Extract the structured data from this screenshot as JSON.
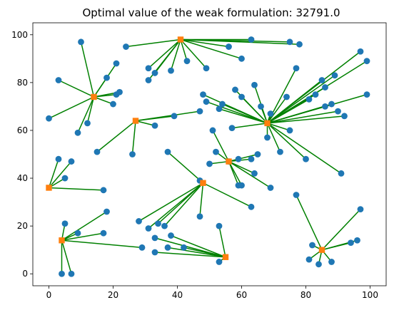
{
  "chart_data": {
    "type": "scatter",
    "title": "Optimal value of the weak formulation: 32791.0",
    "xlabel": "",
    "ylabel": "",
    "xlim": [
      -5,
      105
    ],
    "ylim": [
      -5,
      105
    ],
    "x_ticks": [
      0,
      20,
      40,
      60,
      80,
      100
    ],
    "y_ticks": [
      0,
      20,
      40,
      60,
      80,
      100
    ],
    "grid": false,
    "colors": {
      "customer": "#1f77b4",
      "facility": "#ff7f0e",
      "assignment": "#008000"
    },
    "facilities": [
      {
        "x": 41,
        "y": 98
      },
      {
        "x": 14,
        "y": 74
      },
      {
        "x": 27,
        "y": 64
      },
      {
        "x": 68,
        "y": 63
      },
      {
        "x": 56,
        "y": 47
      },
      {
        "x": 0,
        "y": 36
      },
      {
        "x": 48,
        "y": 38
      },
      {
        "x": 4,
        "y": 14
      },
      {
        "x": 55,
        "y": 7
      },
      {
        "x": 85,
        "y": 10
      }
    ],
    "customers": [
      {
        "x": 10,
        "y": 97,
        "f": 1
      },
      {
        "x": 3,
        "y": 81,
        "f": 1
      },
      {
        "x": 18,
        "y": 82,
        "f": 1
      },
      {
        "x": 21,
        "y": 88,
        "f": 1
      },
      {
        "x": 21,
        "y": 75,
        "f": 1
      },
      {
        "x": 22,
        "y": 76,
        "f": 1
      },
      {
        "x": 20,
        "y": 71,
        "f": 1
      },
      {
        "x": 12,
        "y": 63,
        "f": 1
      },
      {
        "x": 9,
        "y": 59,
        "f": 1
      },
      {
        "x": 0,
        "y": 65,
        "f": 1
      },
      {
        "x": 24,
        "y": 95,
        "f": 0
      },
      {
        "x": 31,
        "y": 86,
        "f": 0
      },
      {
        "x": 33,
        "y": 84,
        "f": 0
      },
      {
        "x": 31,
        "y": 81,
        "f": 0
      },
      {
        "x": 38,
        "y": 85,
        "f": 0
      },
      {
        "x": 43,
        "y": 89,
        "f": 0
      },
      {
        "x": 49,
        "y": 86,
        "f": 0
      },
      {
        "x": 56,
        "y": 95,
        "f": 0
      },
      {
        "x": 60,
        "y": 90,
        "f": 0
      },
      {
        "x": 63,
        "y": 98,
        "f": 0
      },
      {
        "x": 75,
        "y": 97,
        "f": 0
      },
      {
        "x": 78,
        "y": 96,
        "f": 0
      },
      {
        "x": 15,
        "y": 51,
        "f": 2
      },
      {
        "x": 26,
        "y": 50,
        "f": 2
      },
      {
        "x": 33,
        "y": 62,
        "f": 2
      },
      {
        "x": 39,
        "y": 66,
        "f": 2
      },
      {
        "x": 47,
        "y": 68,
        "f": 2
      },
      {
        "x": 97,
        "y": 93,
        "f": 3
      },
      {
        "x": 99,
        "y": 89,
        "f": 3
      },
      {
        "x": 89,
        "y": 83,
        "f": 3
      },
      {
        "x": 85,
        "y": 81,
        "f": 3
      },
      {
        "x": 86,
        "y": 78,
        "f": 3
      },
      {
        "x": 83,
        "y": 75,
        "f": 3
      },
      {
        "x": 81,
        "y": 73,
        "f": 3
      },
      {
        "x": 99,
        "y": 75,
        "f": 3
      },
      {
        "x": 88,
        "y": 71,
        "f": 3
      },
      {
        "x": 86,
        "y": 70,
        "f": 3
      },
      {
        "x": 90,
        "y": 68,
        "f": 3
      },
      {
        "x": 92,
        "y": 66,
        "f": 3
      },
      {
        "x": 77,
        "y": 86,
        "f": 3
      },
      {
        "x": 74,
        "y": 74,
        "f": 3
      },
      {
        "x": 64,
        "y": 79,
        "f": 3
      },
      {
        "x": 58,
        "y": 77,
        "f": 3
      },
      {
        "x": 60,
        "y": 74,
        "f": 3
      },
      {
        "x": 48,
        "y": 75,
        "f": 3
      },
      {
        "x": 49,
        "y": 72,
        "f": 3
      },
      {
        "x": 54,
        "y": 71,
        "f": 3
      },
      {
        "x": 53,
        "y": 69,
        "f": 3
      },
      {
        "x": 66,
        "y": 70,
        "f": 3
      },
      {
        "x": 69,
        "y": 67,
        "f": 3
      },
      {
        "x": 57,
        "y": 61,
        "f": 3
      },
      {
        "x": 68,
        "y": 57,
        "f": 3
      },
      {
        "x": 75,
        "y": 60,
        "f": 3
      },
      {
        "x": 72,
        "y": 51,
        "f": 3
      },
      {
        "x": 80,
        "y": 48,
        "f": 3
      },
      {
        "x": 91,
        "y": 42,
        "f": 3
      },
      {
        "x": 51,
        "y": 60,
        "f": 4
      },
      {
        "x": 52,
        "y": 51,
        "f": 4
      },
      {
        "x": 59,
        "y": 48,
        "f": 4
      },
      {
        "x": 63,
        "y": 48,
        "f": 4
      },
      {
        "x": 65,
        "y": 50,
        "f": 4
      },
      {
        "x": 56,
        "y": 47,
        "f": 4
      },
      {
        "x": 50,
        "y": 46,
        "f": 4
      },
      {
        "x": 64,
        "y": 42,
        "f": 4
      },
      {
        "x": 59,
        "y": 37,
        "f": 4
      },
      {
        "x": 60,
        "y": 37,
        "f": 4
      },
      {
        "x": 69,
        "y": 36,
        "f": 4
      },
      {
        "x": 3,
        "y": 48,
        "f": 5
      },
      {
        "x": 7,
        "y": 47,
        "f": 5
      },
      {
        "x": 5,
        "y": 40,
        "f": 5
      },
      {
        "x": 17,
        "y": 35,
        "f": 5
      },
      {
        "x": 37,
        "y": 51,
        "f": 6
      },
      {
        "x": 47,
        "y": 39,
        "f": 6
      },
      {
        "x": 28,
        "y": 22,
        "f": 6
      },
      {
        "x": 34,
        "y": 21,
        "f": 6
      },
      {
        "x": 36,
        "y": 20,
        "f": 6
      },
      {
        "x": 31,
        "y": 19,
        "f": 6
      },
      {
        "x": 47,
        "y": 24,
        "f": 6
      },
      {
        "x": 63,
        "y": 28,
        "f": 6
      },
      {
        "x": 5,
        "y": 21,
        "f": 7
      },
      {
        "x": 18,
        "y": 26,
        "f": 7
      },
      {
        "x": 9,
        "y": 17,
        "f": 7
      },
      {
        "x": 17,
        "y": 17,
        "f": 7
      },
      {
        "x": 4,
        "y": 0,
        "f": 7
      },
      {
        "x": 7,
        "y": 0,
        "f": 7
      },
      {
        "x": 29,
        "y": 11,
        "f": 7
      },
      {
        "x": 38,
        "y": 16,
        "f": 8
      },
      {
        "x": 33,
        "y": 15,
        "f": 8
      },
      {
        "x": 37,
        "y": 11,
        "f": 8
      },
      {
        "x": 42,
        "y": 11,
        "f": 8
      },
      {
        "x": 33,
        "y": 9,
        "f": 8
      },
      {
        "x": 53,
        "y": 20,
        "f": 8
      },
      {
        "x": 53,
        "y": 5,
        "f": 8
      },
      {
        "x": 77,
        "y": 33,
        "f": 9
      },
      {
        "x": 97,
        "y": 27,
        "f": 9
      },
      {
        "x": 96,
        "y": 14,
        "f": 9
      },
      {
        "x": 94,
        "y": 13,
        "f": 9
      },
      {
        "x": 82,
        "y": 12,
        "f": 9
      },
      {
        "x": 81,
        "y": 6,
        "f": 9
      },
      {
        "x": 84,
        "y": 4,
        "f": 9
      },
      {
        "x": 88,
        "y": 5,
        "f": 9
      }
    ]
  }
}
